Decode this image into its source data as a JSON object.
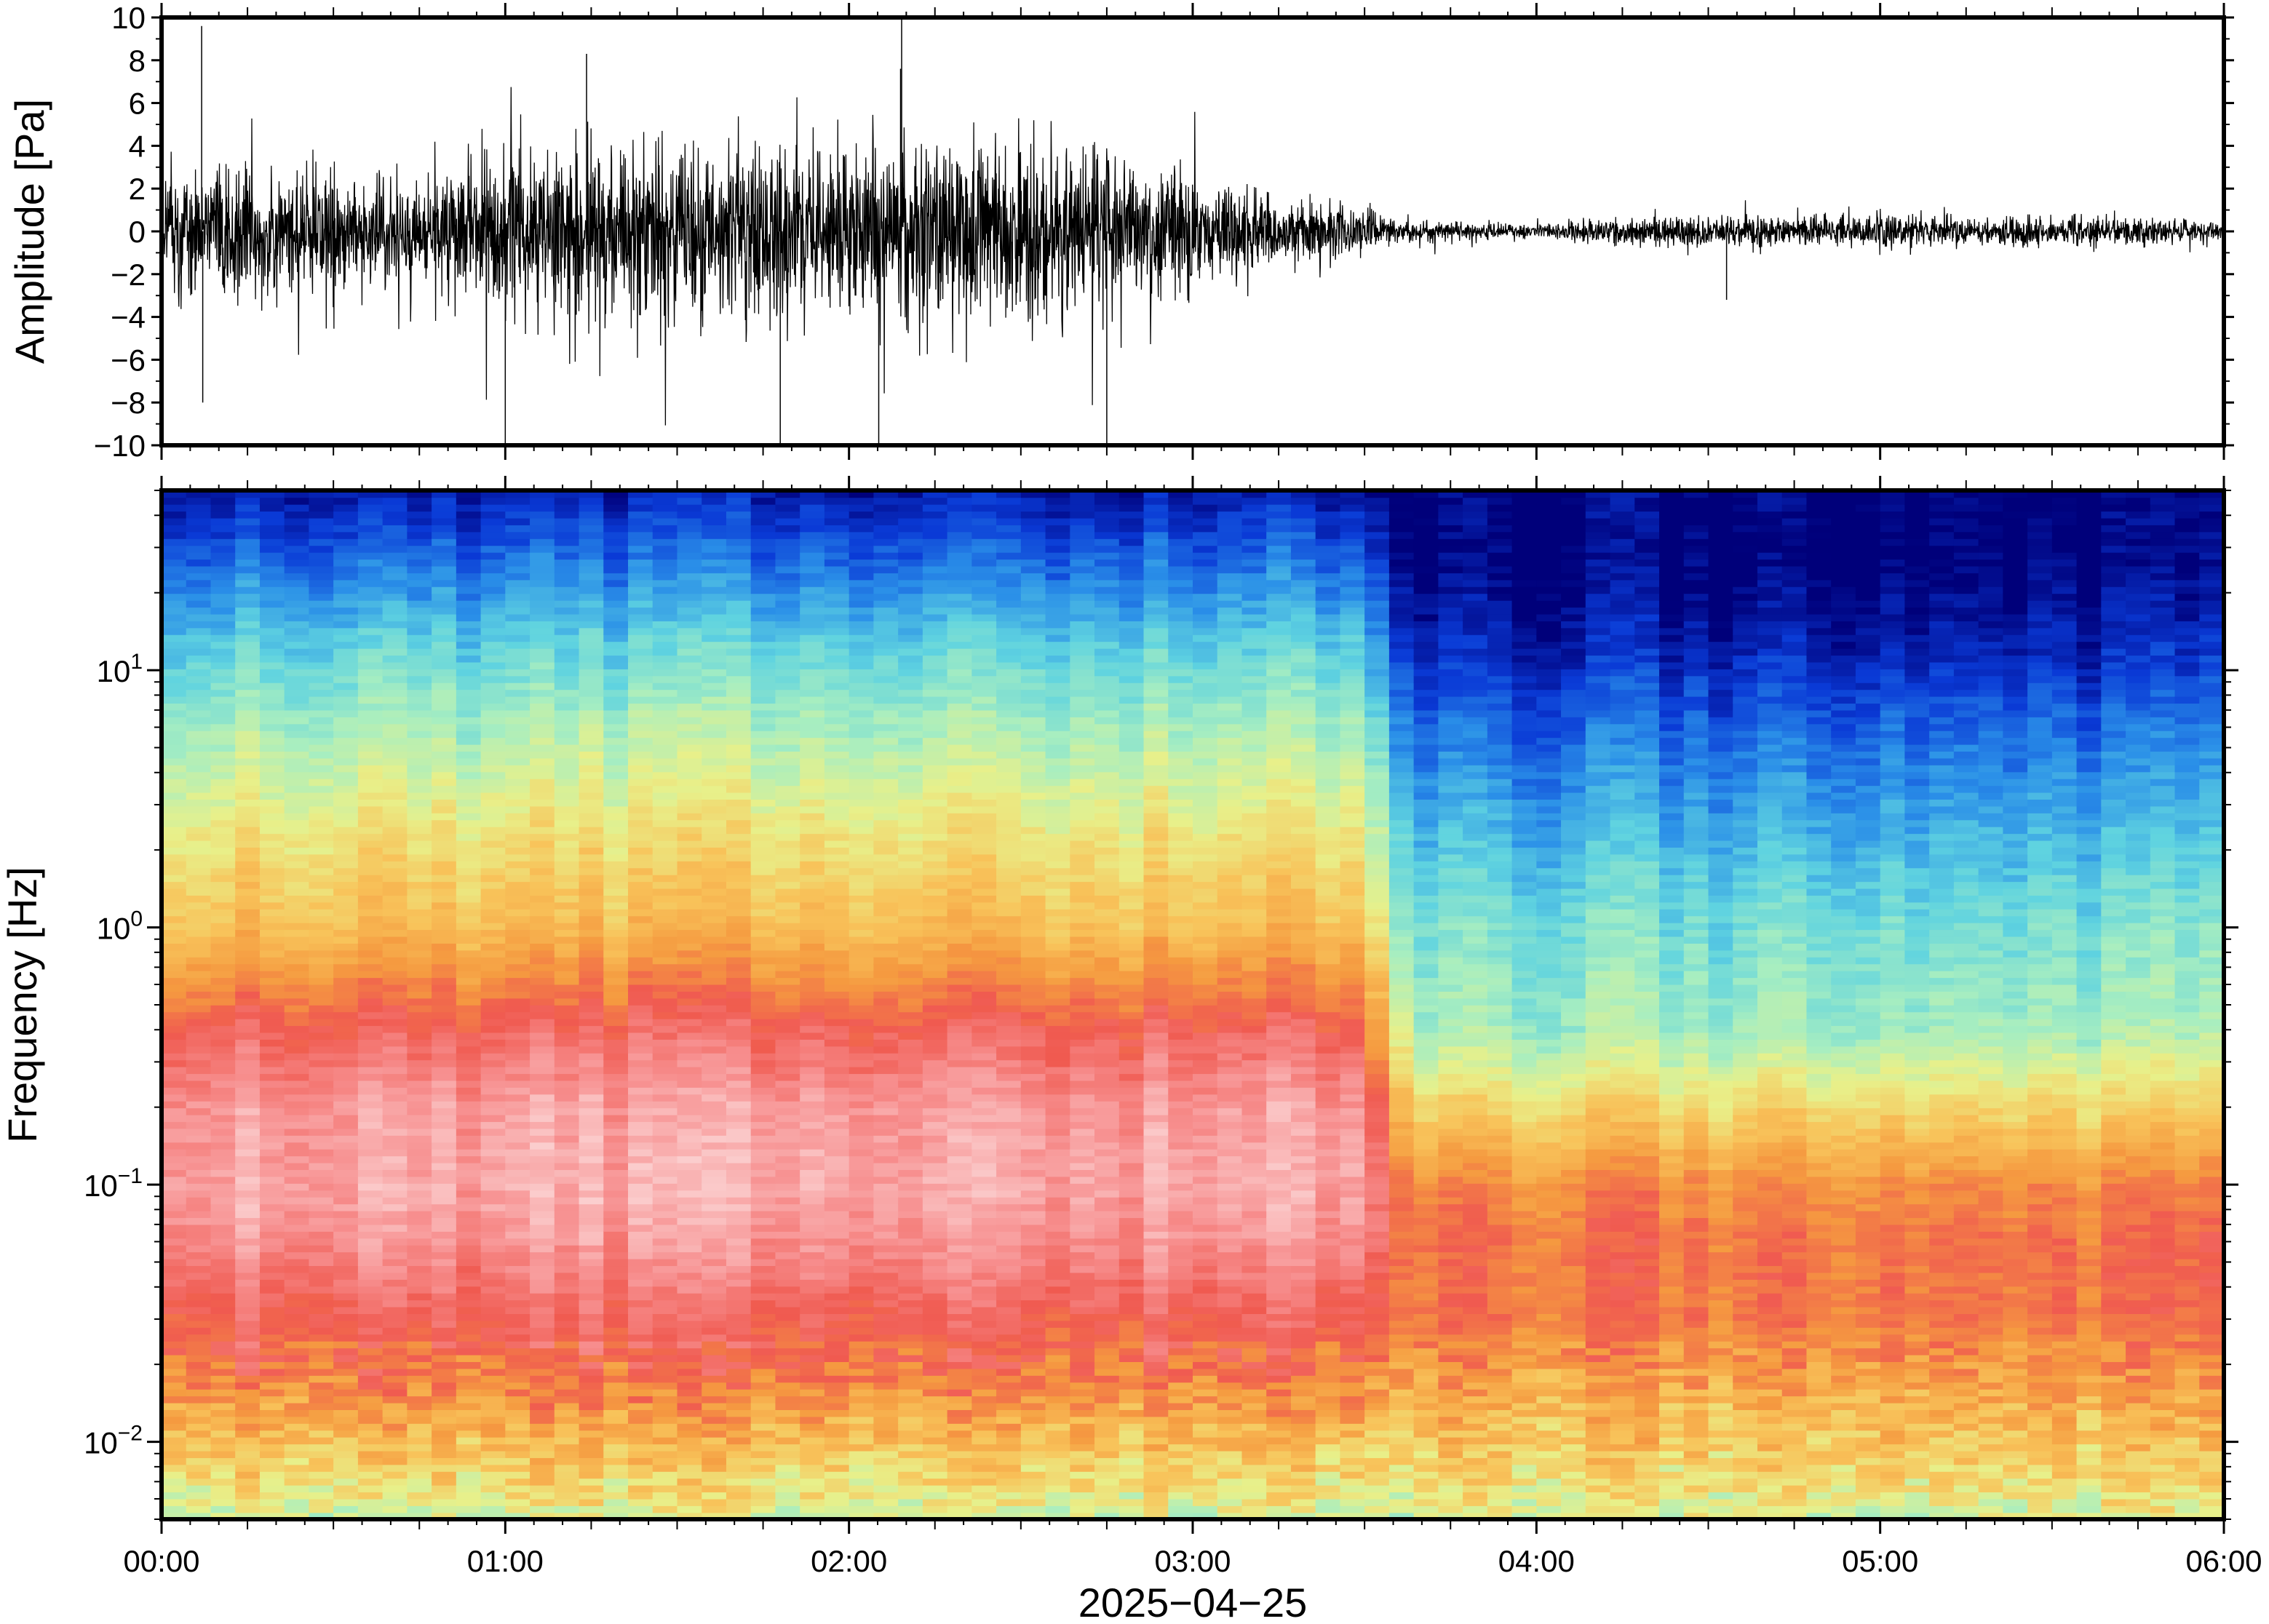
{
  "chart_data": [
    {
      "type": "line",
      "panel": "waveform",
      "title": "",
      "xlabel": "",
      "ylabel": "Amplitude [Pa]",
      "xlim": [
        "00:00",
        "06:00"
      ],
      "ylim": [
        -10,
        10
      ],
      "y_ticks": [
        10,
        8,
        6,
        4,
        2,
        0,
        -2,
        -4,
        -6,
        -8,
        -10
      ],
      "y_tick_labels": [
        "10",
        "8",
        "6",
        "4",
        "2",
        "0",
        "−2",
        "−4",
        "−6",
        "−8",
        "−10"
      ],
      "grid": false,
      "line_color": "#000000",
      "envelope": {
        "time_hours": [
          0.0,
          0.25,
          0.5,
          0.75,
          1.0,
          1.25,
          1.5,
          1.75,
          2.0,
          2.25,
          2.5,
          2.75,
          3.0,
          3.25,
          3.45,
          3.55,
          3.75,
          4.0,
          4.25,
          4.5,
          4.75,
          5.0,
          5.25,
          5.5,
          5.75,
          6.0
        ],
        "typical_abs_pa": [
          2.0,
          2.0,
          1.8,
          1.7,
          2.6,
          2.7,
          2.6,
          2.6,
          2.8,
          2.7,
          2.6,
          2.6,
          1.6,
          1.1,
          0.8,
          0.4,
          0.3,
          0.2,
          0.4,
          0.5,
          0.4,
          0.5,
          0.4,
          0.5,
          0.4,
          0.3
        ]
      },
      "peaks": [
        {
          "time": "00:07",
          "value_pa": 9.6
        },
        {
          "time": "00:07",
          "value_pa": -8.0
        },
        {
          "time": "01:00",
          "value_pa": -10.0
        },
        {
          "time": "01:14",
          "value_pa": 8.3
        },
        {
          "time": "01:48",
          "value_pa": -10.0
        },
        {
          "time": "02:05",
          "value_pa": -10.0
        },
        {
          "time": "02:09",
          "value_pa": 7.6
        },
        {
          "time": "02:09",
          "value_pa": 10.0
        },
        {
          "time": "02:45",
          "value_pa": -10.0
        },
        {
          "time": "04:33",
          "value_pa": -3.2
        }
      ]
    },
    {
      "type": "heatmap",
      "panel": "spectrogram",
      "title": "",
      "xlabel": "2025−04−25",
      "ylabel": "Frequency [Hz]",
      "xlim": [
        "00:00",
        "06:00"
      ],
      "x_tick_labels": [
        "00:00",
        "01:00",
        "02:00",
        "03:00",
        "04:00",
        "05:00",
        "06:00"
      ],
      "y_scale": "log",
      "ylim": [
        0.005,
        50
      ],
      "y_ticks": [
        {
          "base": "10",
          "exp": "−2",
          "value": 0.01
        },
        {
          "base": "10",
          "exp": "−1",
          "value": 0.1
        },
        {
          "base": "10",
          "exp": "0",
          "value": 1
        },
        {
          "base": "10",
          "exp": "1",
          "value": 10
        }
      ],
      "colormap": [
        "#00007a",
        "#0a3ad6",
        "#2a8fe8",
        "#5fd3e0",
        "#a8eec0",
        "#e8f08a",
        "#f8c35a",
        "#f59a40",
        "#f05a50",
        "#f79090",
        "#fbd0d0"
      ],
      "grid": false,
      "columns_per_hour": 14,
      "regime_change_time": "03:30",
      "relative_level_profile": {
        "description_axis": "relative power, 0 = darkest blue, 1 = palest pink",
        "log10_frequency": [
          -2.3,
          -2.0,
          -1.7,
          -1.5,
          -1.2,
          -1.0,
          -0.7,
          -0.4,
          0.0,
          0.4,
          0.8,
          1.1,
          1.4,
          1.7
        ],
        "before_0330": [
          0.47,
          0.62,
          0.77,
          0.82,
          0.91,
          0.94,
          0.92,
          0.82,
          0.62,
          0.52,
          0.4,
          0.3,
          0.17,
          0.05
        ],
        "after_0330": [
          0.48,
          0.6,
          0.7,
          0.76,
          0.76,
          0.72,
          0.56,
          0.4,
          0.34,
          0.25,
          0.15,
          0.06,
          0.0,
          0.0
        ]
      }
    }
  ]
}
